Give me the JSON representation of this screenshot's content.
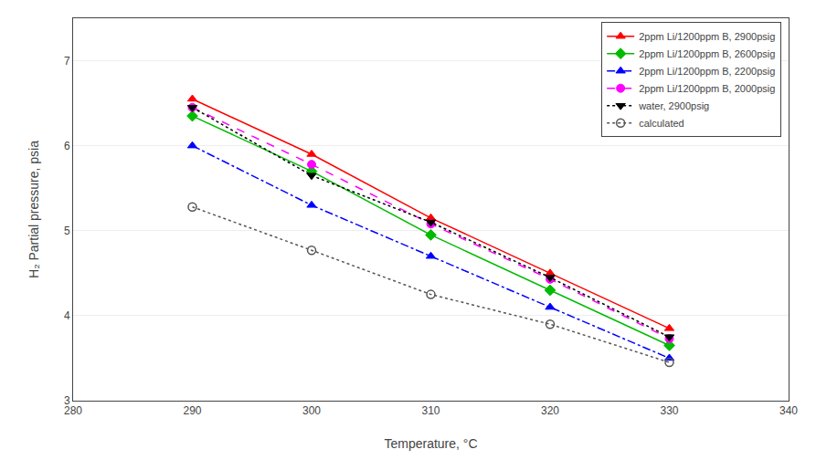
{
  "chart_data": {
    "type": "line",
    "xlabel": "Temperature, °C",
    "ylabel": "H₂ Partial pressure, psia",
    "xlim": [
      280,
      340
    ],
    "ylim": [
      3,
      7.5
    ],
    "xticks": [
      280,
      290,
      300,
      310,
      320,
      330,
      340
    ],
    "yticks": [
      3,
      4,
      5,
      6,
      7
    ],
    "grid": "y",
    "legend": "upper right",
    "x": [
      290,
      300,
      310,
      320,
      330
    ],
    "series": [
      {
        "name": "2ppm Li/1200ppm B, 2900psig",
        "color": "#ff0000",
        "marker": "triangle-up",
        "line_style": "solid",
        "values": [
          6.55,
          5.9,
          5.15,
          4.5,
          3.85
        ]
      },
      {
        "name": "2ppm Li/1200ppm B, 2600psig",
        "color": "#00bb00",
        "marker": "diamond",
        "line_style": "solid",
        "values": [
          6.35,
          5.7,
          4.95,
          4.3,
          3.65
        ]
      },
      {
        "name": "2ppm Li/1200ppm B, 2200psig",
        "color": "#0000ff",
        "marker": "triangle-up",
        "line_style": "dashdot",
        "values": [
          6.0,
          5.3,
          4.7,
          4.1,
          3.5
        ]
      },
      {
        "name": "2ppm Li/1200ppm B, 2000psig",
        "color": "#ff00ff",
        "marker": "circle",
        "line_style": "dash",
        "values": [
          6.45,
          5.78,
          5.08,
          4.43,
          3.73
        ]
      },
      {
        "name": "water, 2900psig",
        "color": "#000000",
        "marker": "triangle-down",
        "line_style": "dot",
        "values": [
          6.45,
          5.65,
          5.1,
          4.45,
          3.75
        ]
      },
      {
        "name": "calculated",
        "color": "#555555",
        "marker": "circle-open",
        "line_style": "dot",
        "values": [
          5.28,
          4.77,
          4.25,
          3.9,
          3.45
        ]
      }
    ]
  }
}
